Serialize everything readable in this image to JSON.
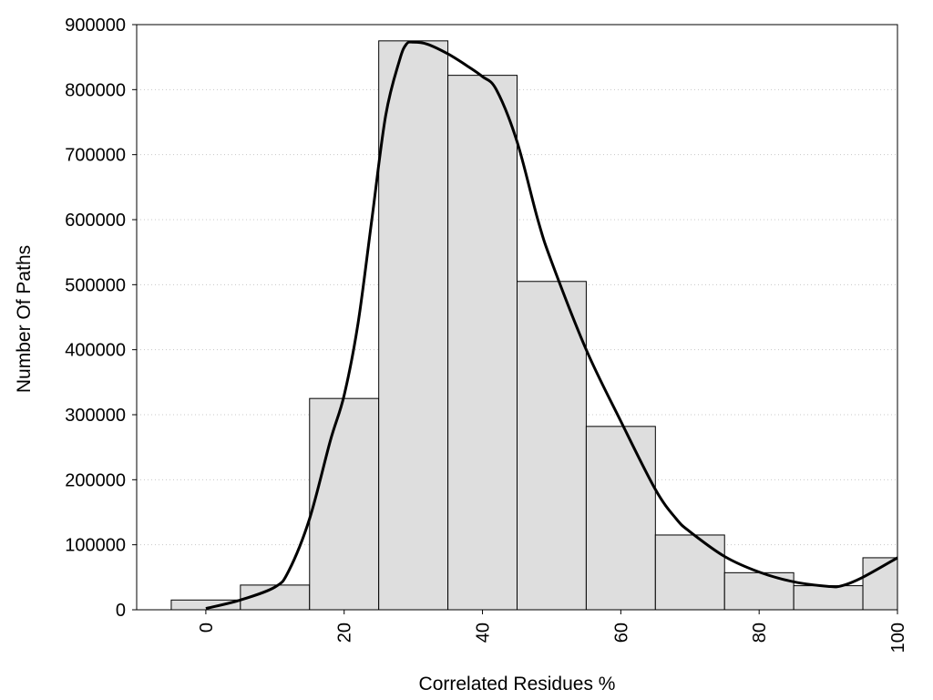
{
  "chart_data": {
    "type": "bar",
    "title": "",
    "xlabel": "Correlated Residues %",
    "ylabel": "Number Of Paths",
    "xlim": [
      -10,
      100
    ],
    "ylim": [
      0,
      900000
    ],
    "grid": "horizontal-dotted",
    "bar_color": "#dedede",
    "bar_edge_color": "#000000",
    "curve_color": "#000000",
    "x_ticks": [
      0,
      20,
      40,
      60,
      80,
      100
    ],
    "x_tick_labels": [
      "0",
      "20",
      "40",
      "60",
      "80",
      "100"
    ],
    "y_ticks": [
      0,
      100000,
      200000,
      300000,
      400000,
      500000,
      600000,
      700000,
      800000,
      900000
    ],
    "y_tick_labels": [
      "0",
      "100000",
      "200000",
      "300000",
      "400000",
      "500000",
      "600000",
      "700000",
      "800000",
      "900000"
    ],
    "bin_width": 10,
    "series": [
      {
        "type": "bar",
        "x": [
          0,
          10,
          20,
          30,
          40,
          50,
          60,
          70,
          80,
          90,
          100
        ],
        "values": [
          15000,
          38000,
          325000,
          875000,
          822000,
          505000,
          282000,
          115000,
          57000,
          37000,
          80000
        ]
      },
      {
        "type": "line",
        "x": [
          0,
          5,
          10,
          12,
          15,
          18,
          20,
          22,
          24,
          26,
          28,
          29,
          30,
          32,
          35,
          38,
          40,
          42,
          45,
          48,
          50,
          55,
          60,
          65,
          68,
          70,
          75,
          80,
          85,
          90,
          92,
          95,
          100
        ],
        "values": [
          2000,
          15000,
          35000,
          60000,
          140000,
          260000,
          330000,
          440000,
          600000,
          760000,
          845000,
          870000,
          873000,
          870000,
          855000,
          835000,
          820000,
          800000,
          720000,
          600000,
          535000,
          400000,
          290000,
          185000,
          140000,
          120000,
          82000,
          58000,
          43000,
          36000,
          37000,
          50000,
          80000
        ]
      }
    ]
  }
}
